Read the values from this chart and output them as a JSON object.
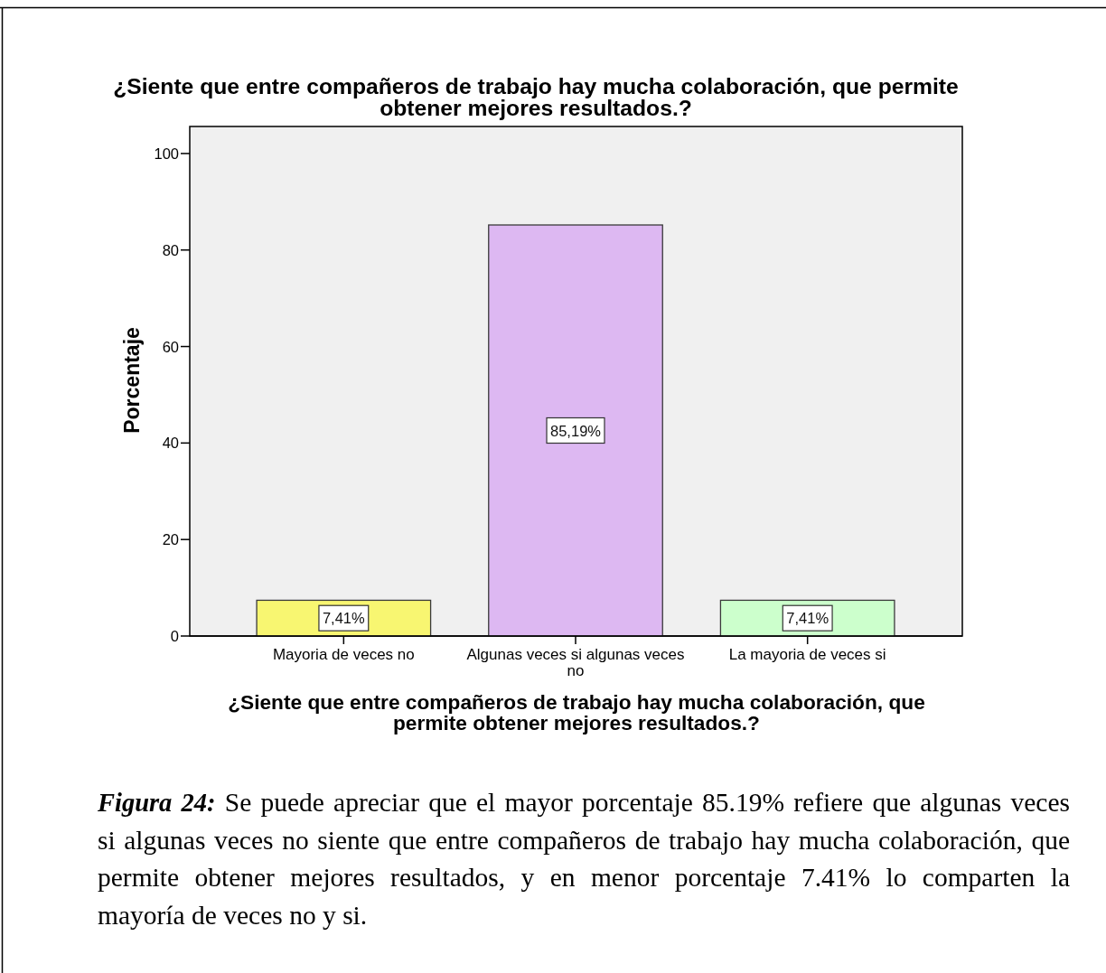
{
  "chart_data": {
    "type": "bar",
    "title": "¿Siente que entre compañeros de trabajo hay mucha colaboración, que permite obtener mejores resultados.?",
    "xlabel": "¿Siente que entre compañeros de trabajo hay mucha colaboración, que permite obtener mejores resultados.?",
    "ylabel": "Porcentaje",
    "categories": [
      "Mayoria de veces no",
      "Algunas veces si algunas veces no",
      "La mayoria de veces si"
    ],
    "values": [
      7.41,
      85.19,
      7.41
    ],
    "colors": [
      "#f8f671",
      "#ddb8f2",
      "#ccffcc"
    ],
    "value_labels": [
      "7,41%",
      "85,19%",
      "7,41%"
    ],
    "ylim": [
      0,
      105.6
    ],
    "yticks": [
      0,
      20,
      40,
      60,
      80,
      100
    ],
    "annotations": [
      "Figura 24: Se puede apreciar que el mayor porcentaje 85.19% refiere que algunas veces si algunas veces no siente que entre compañeros de trabajo hay mucha colaboración, que permite obtener mejores resultados, y en menor porcentaje 7.41% lo comparten la mayoría de veces no y si."
    ]
  }
}
